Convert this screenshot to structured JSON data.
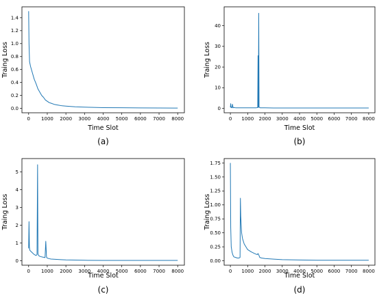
{
  "chart_data": [
    {
      "type": "line",
      "panel_label": "(a)",
      "xlabel": "Time Slot",
      "ylabel": "Traing Loss",
      "xlim": [
        0,
        8000
      ],
      "ylim": [
        0,
        1.5
      ],
      "xticks": [
        "0",
        "1000",
        "2000",
        "3000",
        "4000",
        "5000",
        "6000",
        "7000",
        "8000"
      ],
      "yticks": [
        "0.0",
        "0.2",
        "0.4",
        "0.6",
        "0.8",
        "1.0",
        "1.2",
        "1.4"
      ],
      "color": "#1f77b4",
      "x": [
        0,
        20,
        50,
        100,
        200,
        300,
        400,
        500,
        600,
        700,
        800,
        900,
        1000,
        1100,
        1200,
        1400,
        1600,
        1800,
        2000,
        2500,
        3000,
        3500,
        4000,
        5000,
        6000,
        7000,
        8000
      ],
      "y": [
        1.5,
        1.0,
        0.72,
        0.65,
        0.55,
        0.45,
        0.38,
        0.3,
        0.25,
        0.2,
        0.17,
        0.13,
        0.11,
        0.09,
        0.08,
        0.06,
        0.05,
        0.04,
        0.035,
        0.025,
        0.02,
        0.015,
        0.012,
        0.01,
        0.008,
        0.006,
        0.005
      ]
    },
    {
      "type": "line",
      "panel_label": "(b)",
      "xlabel": "Time Slot",
      "ylabel": "Traing Loss",
      "xlim": [
        0,
        8000
      ],
      "ylim": [
        0,
        47
      ],
      "xticks": [
        "0",
        "1000",
        "2000",
        "3000",
        "4000",
        "5000",
        "6000",
        "7000",
        "8000"
      ],
      "yticks": [
        "0",
        "10",
        "20",
        "30",
        "40"
      ],
      "color": "#1f77b4",
      "x": [
        0,
        20,
        40,
        60,
        100,
        120,
        160,
        200,
        300,
        500,
        800,
        1000,
        1200,
        1500,
        1580,
        1600,
        1620,
        1640,
        1660,
        1680,
        1700,
        1720,
        1800,
        2000,
        2500,
        3000,
        4000,
        5000,
        6000,
        7000,
        8000
      ],
      "y": [
        0.5,
        2.3,
        0.4,
        0.6,
        0.3,
        2.0,
        0.3,
        0.4,
        0.3,
        0.3,
        0.3,
        0.3,
        0.3,
        0.3,
        0.4,
        25.5,
        0.5,
        46.0,
        0.6,
        0.5,
        0.4,
        0.3,
        0.3,
        0.3,
        0.2,
        0.2,
        0.2,
        0.2,
        0.2,
        0.2,
        0.2
      ]
    },
    {
      "type": "line",
      "panel_label": "(c)",
      "xlabel": "Time Slot",
      "ylabel": "Traing Loss",
      "xlim": [
        0,
        8000
      ],
      "ylim": [
        0,
        5.5
      ],
      "xticks": [
        "0",
        "1000",
        "2000",
        "3000",
        "4000",
        "5000",
        "6000",
        "7000",
        "8000"
      ],
      "yticks": [
        "0",
        "1",
        "2",
        "3",
        "4",
        "5"
      ],
      "color": "#1f77b4",
      "x": [
        0,
        20,
        40,
        60,
        100,
        200,
        300,
        400,
        450,
        480,
        500,
        530,
        560,
        600,
        700,
        800,
        880,
        920,
        960,
        1000,
        1100,
        1200,
        1500,
        1800,
        2000,
        2500,
        3000,
        4000,
        5000,
        6000,
        7000,
        8000
      ],
      "y": [
        0.7,
        2.2,
        0.8,
        0.6,
        0.55,
        0.45,
        0.35,
        0.3,
        0.35,
        5.4,
        0.4,
        0.3,
        0.28,
        0.25,
        0.22,
        0.2,
        0.18,
        1.1,
        0.2,
        0.15,
        0.12,
        0.1,
        0.08,
        0.06,
        0.05,
        0.04,
        0.03,
        0.02,
        0.02,
        0.02,
        0.02,
        0.02
      ]
    },
    {
      "type": "line",
      "panel_label": "(d)",
      "xlabel": "Time Slot",
      "ylabel": "Traing Loss",
      "xlim": [
        0,
        8000
      ],
      "ylim": [
        0,
        1.75
      ],
      "xticks": [
        "0",
        "1000",
        "2000",
        "3000",
        "4000",
        "5000",
        "6000",
        "7000",
        "8000"
      ],
      "yticks": [
        "0.00",
        "0.25",
        "0.50",
        "0.75",
        "1.00",
        "1.25",
        "1.50",
        "1.75"
      ],
      "color": "#1f77b4",
      "x": [
        0,
        20,
        50,
        100,
        150,
        200,
        300,
        400,
        500,
        560,
        580,
        600,
        650,
        700,
        800,
        900,
        1000,
        1200,
        1400,
        1550,
        1600,
        1650,
        1700,
        1800,
        2000,
        2500,
        3000,
        4000,
        5000,
        6000,
        7000,
        8000
      ],
      "y": [
        1.75,
        0.6,
        0.25,
        0.15,
        0.1,
        0.07,
        0.06,
        0.05,
        0.05,
        0.06,
        1.12,
        0.8,
        0.5,
        0.4,
        0.3,
        0.25,
        0.2,
        0.16,
        0.13,
        0.11,
        0.13,
        0.1,
        0.06,
        0.05,
        0.04,
        0.03,
        0.02,
        0.015,
        0.01,
        0.01,
        0.01,
        0.01
      ]
    }
  ]
}
